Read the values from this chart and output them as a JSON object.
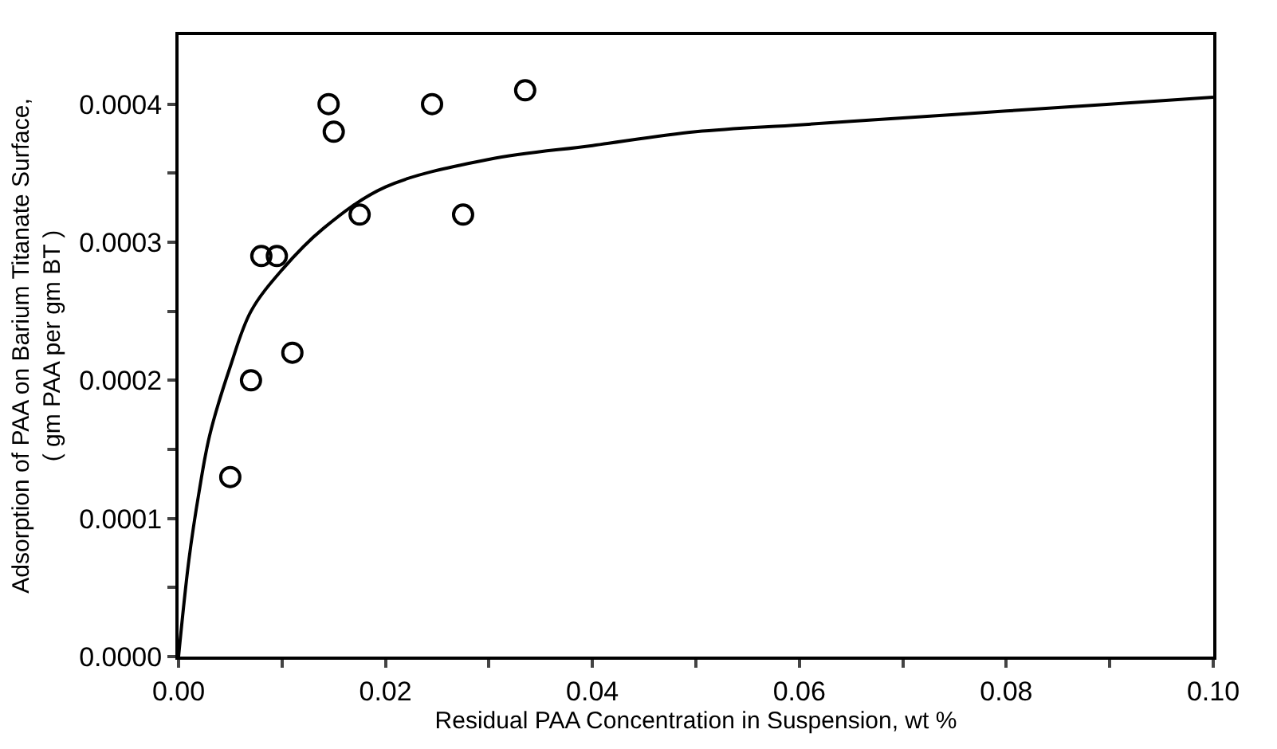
{
  "chart_data": {
    "type": "scatter",
    "xlabel": "Residual PAA Concentration in Suspension, wt %",
    "ylabel": "Adsorption of PAA on Barium Titanate Surface,\n( gm PAA per gm BT )",
    "xlim": [
      0,
      0.1
    ],
    "ylim": [
      0,
      0.00045
    ],
    "xticks": [
      {
        "value": 0,
        "label": "0.00"
      },
      {
        "value": 0.01,
        "label": null
      },
      {
        "value": 0.02,
        "label": "0.02"
      },
      {
        "value": 0.03,
        "label": null
      },
      {
        "value": 0.04,
        "label": "0.04"
      },
      {
        "value": 0.05,
        "label": null
      },
      {
        "value": 0.06,
        "label": "0.06"
      },
      {
        "value": 0.07,
        "label": null
      },
      {
        "value": 0.08,
        "label": "0.08"
      },
      {
        "value": 0.09,
        "label": null
      },
      {
        "value": 0.1,
        "label": "0.10"
      }
    ],
    "yticks": [
      {
        "value": 0,
        "label": "0.0000"
      },
      {
        "value": 5e-05,
        "label": null
      },
      {
        "value": 0.0001,
        "label": "0.0001"
      },
      {
        "value": 0.00015,
        "label": null
      },
      {
        "value": 0.0002,
        "label": "0.0002"
      },
      {
        "value": 0.00025,
        "label": null
      },
      {
        "value": 0.0003,
        "label": "0.0003"
      },
      {
        "value": 0.00035,
        "label": null
      },
      {
        "value": 0.0004,
        "label": "0.0004"
      }
    ],
    "series": [
      {
        "marker": "circle",
        "color": "#000000",
        "x": [
          0.005,
          0.007,
          0.008,
          0.0095,
          0.011,
          0.0145,
          0.015,
          0.0175,
          0.0245,
          0.0275,
          0.0335
        ],
        "values": [
          0.00013,
          0.0002,
          0.00029,
          0.00029,
          0.00022,
          0.0004,
          0.00038,
          0.00032,
          0.0004,
          0.00032,
          0.00041
        ]
      },
      {
        "type": "line",
        "marker": "none",
        "line_style": "solid",
        "color": "#000000",
        "x": [
          0,
          0.001,
          0.002,
          0.003,
          0.005,
          0.007,
          0.01,
          0.014,
          0.02,
          0.03,
          0.04,
          0.05,
          0.06,
          0.07,
          0.08,
          0.09,
          0.1
        ],
        "values": [
          0,
          7e-05,
          0.00012,
          0.00016,
          0.00021,
          0.00025,
          0.00028,
          0.00031,
          0.00034,
          0.00036,
          0.00037,
          0.00038,
          0.000385,
          0.00039,
          0.000395,
          0.0004,
          0.000405
        ]
      }
    ]
  }
}
